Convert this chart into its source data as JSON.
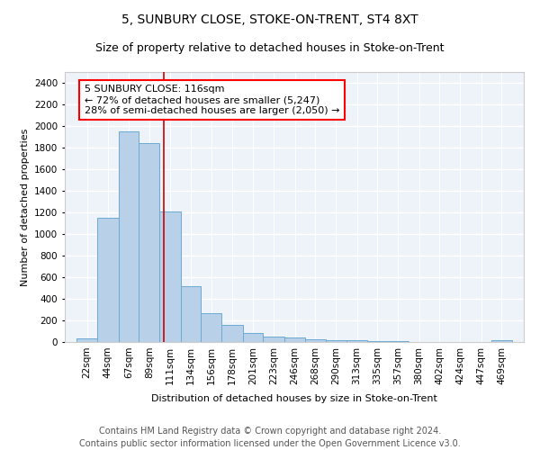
{
  "title": "5, SUNBURY CLOSE, STOKE-ON-TRENT, ST4 8XT",
  "subtitle": "Size of property relative to detached houses in Stoke-on-Trent",
  "xlabel": "Distribution of detached houses by size in Stoke-on-Trent",
  "ylabel": "Number of detached properties",
  "bar_color": "#b8d0e8",
  "bar_edge_color": "#6aaad4",
  "annotation_line1": "5 SUNBURY CLOSE: 116sqm",
  "annotation_line2": "← 72% of detached houses are smaller (5,247)",
  "annotation_line3": "28% of semi-detached houses are larger (2,050) →",
  "vline_x": 116,
  "vline_color": "#cc0000",
  "categories": [
    "22sqm",
    "44sqm",
    "67sqm",
    "89sqm",
    "111sqm",
    "134sqm",
    "156sqm",
    "178sqm",
    "201sqm",
    "223sqm",
    "246sqm",
    "268sqm",
    "290sqm",
    "313sqm",
    "335sqm",
    "357sqm",
    "380sqm",
    "402sqm",
    "424sqm",
    "447sqm",
    "469sqm"
  ],
  "bin_edges": [
    22,
    44,
    67,
    89,
    111,
    134,
    156,
    178,
    201,
    223,
    246,
    268,
    290,
    313,
    335,
    357,
    380,
    402,
    424,
    447,
    469,
    491
  ],
  "values": [
    30,
    1150,
    1950,
    1840,
    1210,
    515,
    265,
    155,
    80,
    50,
    45,
    25,
    20,
    15,
    5,
    5,
    0,
    0,
    0,
    0,
    15
  ],
  "ylim": [
    0,
    2500
  ],
  "yticks": [
    0,
    200,
    400,
    600,
    800,
    1000,
    1200,
    1400,
    1600,
    1800,
    2000,
    2200,
    2400
  ],
  "footer_line1": "Contains HM Land Registry data © Crown copyright and database right 2024.",
  "footer_line2": "Contains public sector information licensed under the Open Government Licence v3.0.",
  "background_color": "#eef2f9",
  "grid_color": "#ffffff",
  "title_fontsize": 10,
  "subtitle_fontsize": 9,
  "annot_fontsize": 8,
  "footer_fontsize": 7,
  "axis_label_fontsize": 8,
  "tick_fontsize": 7.5
}
